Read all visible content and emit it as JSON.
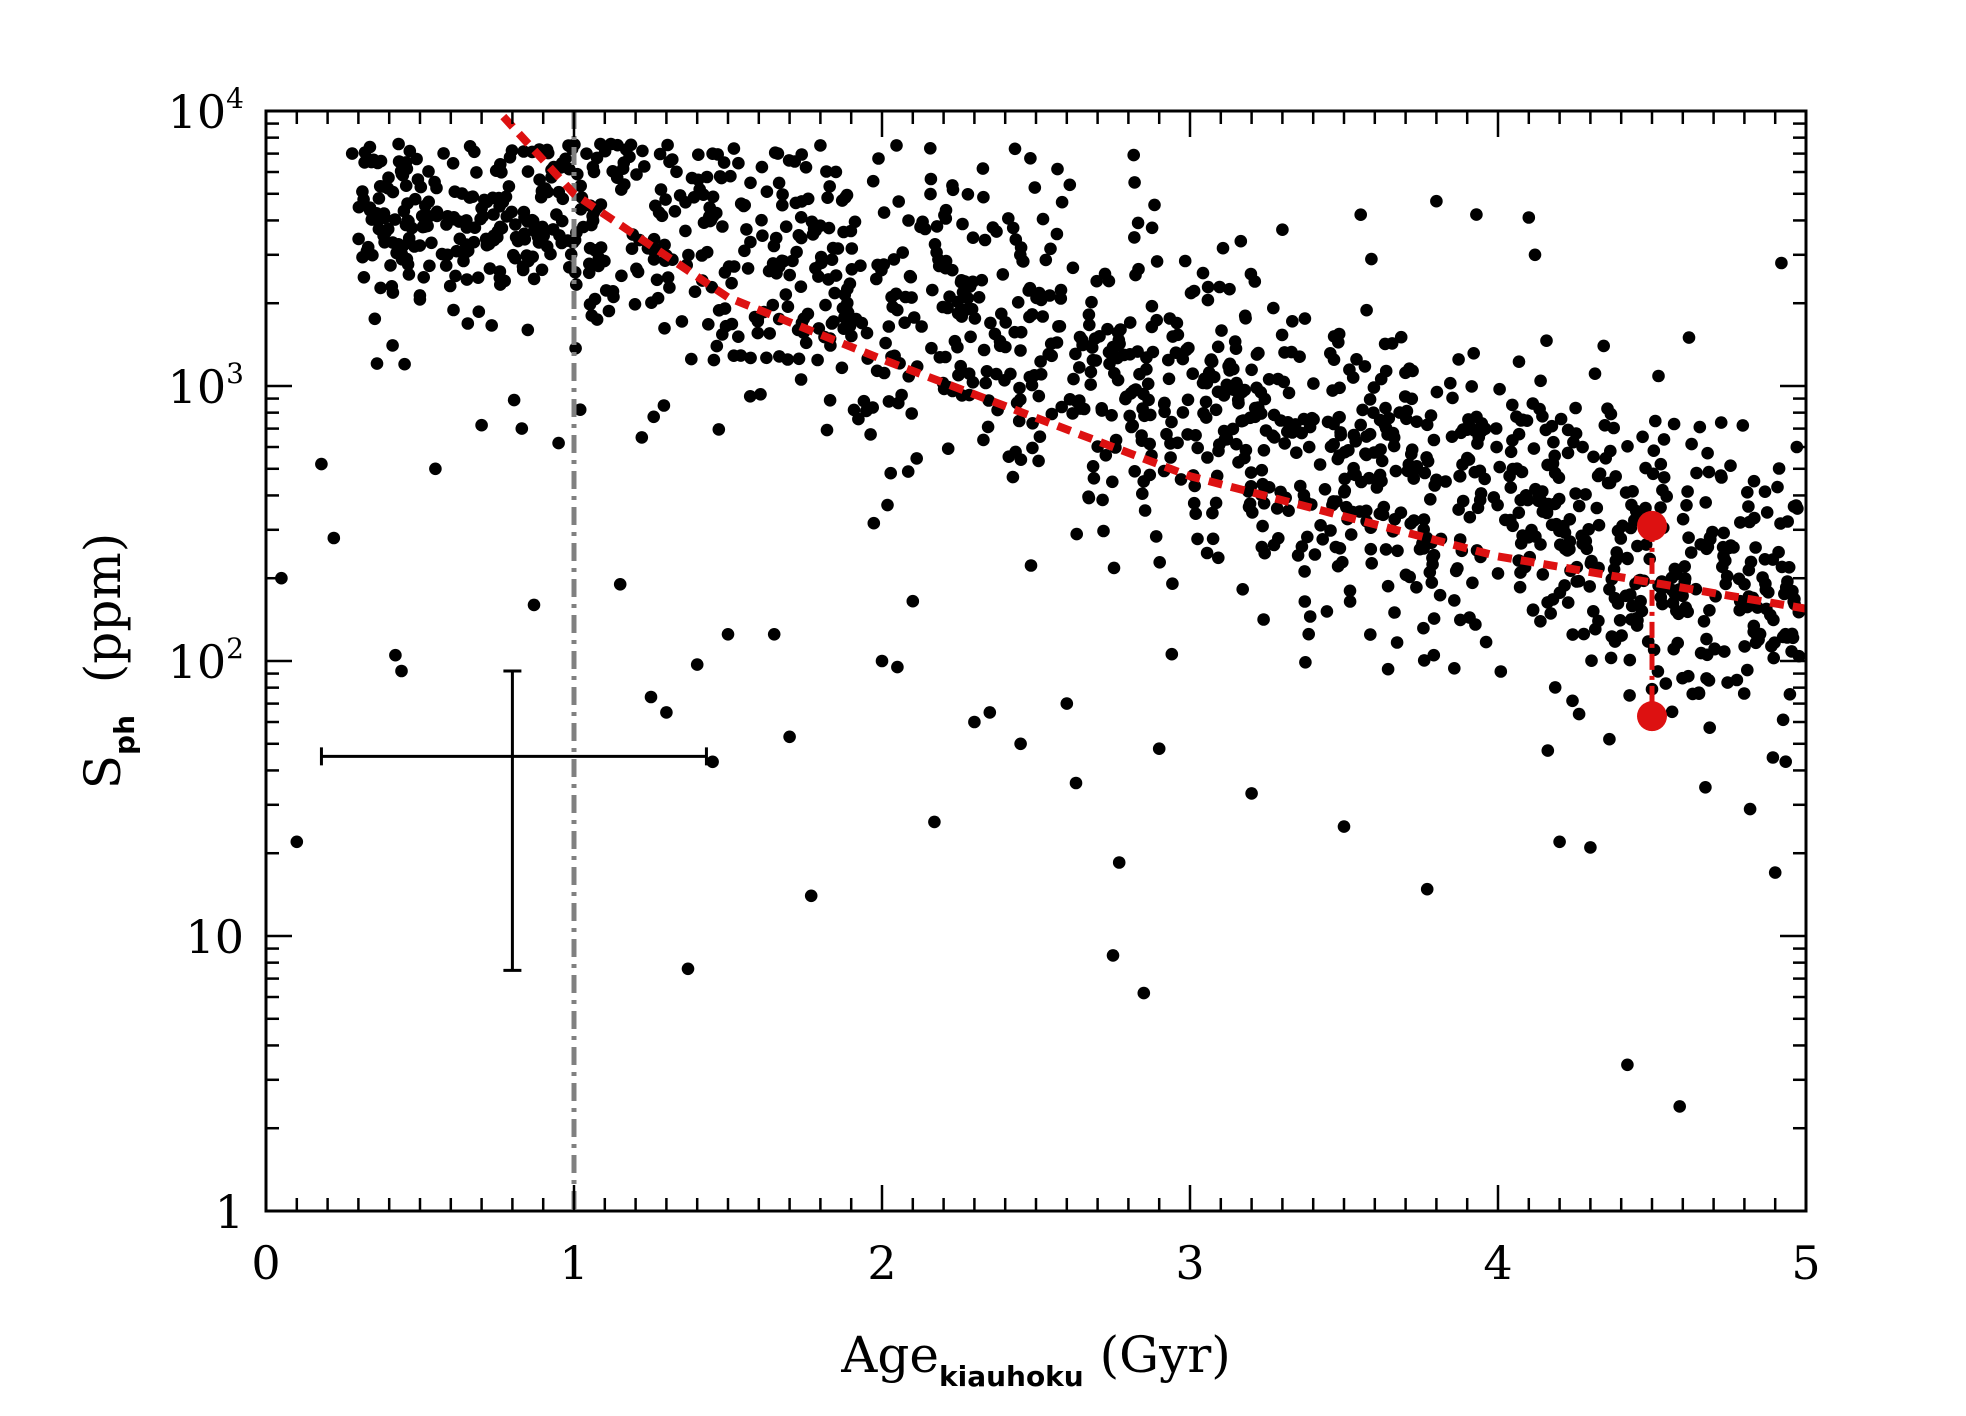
{
  "chart_data": {
    "type": "scatter",
    "xlabel": {
      "main": "Age",
      "subscript": "kiauhoku",
      "suffix": " (Gyr)"
    },
    "ylabel": {
      "main": "S",
      "subscript": "ph",
      "suffix": "  (ppm)"
    },
    "xlim": [
      0,
      5
    ],
    "ylim": [
      1,
      10000
    ],
    "yscale": "log",
    "x_ticks": [
      {
        "value": 0,
        "label": "0"
      },
      {
        "value": 1,
        "label": "1"
      },
      {
        "value": 2,
        "label": "2"
      },
      {
        "value": 3,
        "label": "3"
      },
      {
        "value": 4,
        "label": "4"
      },
      {
        "value": 5,
        "label": "5"
      }
    ],
    "y_ticks": [
      {
        "value": 1,
        "label": "1"
      },
      {
        "value": 10,
        "label": "10"
      },
      {
        "value": 100,
        "base": "10",
        "exp": "2"
      },
      {
        "value": 1000,
        "base": "10",
        "exp": "3"
      },
      {
        "value": 10000,
        "base": "10",
        "exp": "4"
      }
    ],
    "scatter_color": "#000000",
    "scatter_random_seed": 12345,
    "scatter_count": 1500,
    "scatter_population": {
      "young_cluster": {
        "age_range": [
          0.3,
          1.1
        ],
        "log_s_mean": 3.6,
        "log_s_sd": 0.18
      },
      "trend": {
        "log_s_at_age_1": 3.7,
        "slope_per_gyr": -0.38,
        "scatter_sd": 0.3
      }
    },
    "scatter_outliers": [
      [
        0.05,
        200
      ],
      [
        0.1,
        22
      ],
      [
        0.18,
        520
      ],
      [
        0.22,
        280
      ],
      [
        0.28,
        7000
      ],
      [
        0.32,
        6500
      ],
      [
        0.42,
        105
      ],
      [
        0.44,
        92
      ],
      [
        0.45,
        1200
      ],
      [
        0.55,
        500
      ],
      [
        0.7,
        720
      ],
      [
        0.85,
        1600
      ],
      [
        0.87,
        160
      ],
      [
        0.95,
        620
      ],
      [
        1.02,
        820
      ],
      [
        1.15,
        190
      ],
      [
        1.22,
        650
      ],
      [
        1.25,
        74
      ],
      [
        1.3,
        65
      ],
      [
        1.37,
        7.6
      ],
      [
        1.4,
        97
      ],
      [
        1.45,
        43
      ],
      [
        1.5,
        125
      ],
      [
        1.65,
        125
      ],
      [
        1.7,
        53
      ],
      [
        1.77,
        14
      ],
      [
        1.8,
        7500
      ],
      [
        2.0,
        100
      ],
      [
        2.05,
        95
      ],
      [
        2.1,
        165
      ],
      [
        2.17,
        26
      ],
      [
        2.3,
        60
      ],
      [
        2.35,
        65
      ],
      [
        2.45,
        50
      ],
      [
        2.6,
        70
      ],
      [
        2.63,
        36
      ],
      [
        2.75,
        8.5
      ],
      [
        2.77,
        18.5
      ],
      [
        2.82,
        5500
      ],
      [
        2.85,
        6.2
      ],
      [
        2.9,
        48
      ],
      [
        3.2,
        33
      ],
      [
        3.3,
        3700
      ],
      [
        3.5,
        25
      ],
      [
        3.77,
        14.8
      ],
      [
        3.8,
        4700
      ],
      [
        3.93,
        4200
      ],
      [
        4.1,
        4100
      ],
      [
        4.12,
        3000
      ],
      [
        4.2,
        22
      ],
      [
        4.3,
        21
      ],
      [
        4.42,
        3.4
      ],
      [
        4.59,
        2.4
      ],
      [
        4.62,
        1500
      ],
      [
        4.92,
        2800
      ],
      [
        4.97,
        600
      ],
      [
        4.9,
        17
      ]
    ],
    "error_bar": {
      "x": 0.8,
      "y": 45,
      "x_err": [
        0.18,
        1.43
      ],
      "y_err": [
        7.5,
        92
      ],
      "color": "#000000"
    },
    "vertical_line": {
      "x": 1.0,
      "style": "dash-dot",
      "color": "#808080"
    },
    "trend_line": {
      "style": "dashed",
      "color": "#dd1111",
      "points": [
        [
          0.72,
          11000
        ],
        [
          1.0,
          5000
        ],
        [
          1.5,
          2100
        ],
        [
          2.0,
          1250
        ],
        [
          3.0,
          470
        ],
        [
          4.0,
          240
        ],
        [
          5.0,
          155
        ]
      ]
    },
    "sun_points": {
      "color": "#dd1111",
      "x": 4.5,
      "y_values": [
        310,
        63
      ],
      "connector_style": "dash-dot"
    }
  }
}
